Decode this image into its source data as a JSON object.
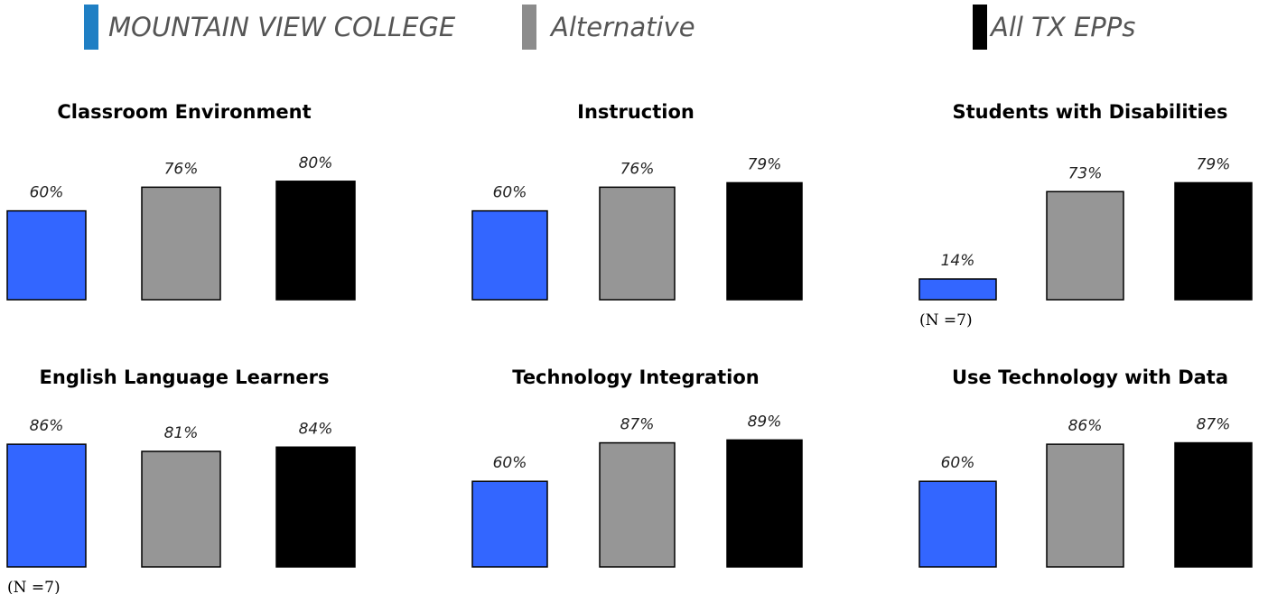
{
  "legend": [
    {
      "label": "MOUNTAIN VIEW COLLEGE",
      "color": "#1f7fc4"
    },
    {
      "label": "Alternative",
      "color": "#8c8c8c"
    },
    {
      "label": "All TX EPPs",
      "color": "#000000"
    }
  ],
  "colors": {
    "bar_program": "#3366ff",
    "bar_alternative": "#969696",
    "bar_all": "#000000"
  },
  "chart_data": [
    {
      "type": "bar",
      "title": "Classroom Environment",
      "categories": [
        "MOUNTAIN VIEW COLLEGE",
        "Alternative",
        "All TX EPPs"
      ],
      "values": [
        60,
        76,
        80
      ],
      "labels": [
        "60%",
        "76%",
        "80%"
      ],
      "note": "",
      "ylim": [
        0,
        100
      ]
    },
    {
      "type": "bar",
      "title": "Instruction",
      "categories": [
        "MOUNTAIN VIEW COLLEGE",
        "Alternative",
        "All TX EPPs"
      ],
      "values": [
        60,
        76,
        79
      ],
      "labels": [
        "60%",
        "76%",
        "79%"
      ],
      "note": "",
      "ylim": [
        0,
        100
      ]
    },
    {
      "type": "bar",
      "title": "Students with Disabilities",
      "categories": [
        "MOUNTAIN VIEW COLLEGE",
        "Alternative",
        "All TX EPPs"
      ],
      "values": [
        14,
        73,
        79
      ],
      "labels": [
        "14%",
        "73%",
        "79%"
      ],
      "note": "(N =7)",
      "ylim": [
        0,
        100
      ]
    },
    {
      "type": "bar",
      "title": "English Language Learners",
      "categories": [
        "MOUNTAIN VIEW COLLEGE",
        "Alternative",
        "All TX EPPs"
      ],
      "values": [
        86,
        81,
        84
      ],
      "labels": [
        "86%",
        "81%",
        "84%"
      ],
      "note": "(N =7)",
      "ylim": [
        0,
        100
      ]
    },
    {
      "type": "bar",
      "title": "Technology Integration",
      "categories": [
        "MOUNTAIN VIEW COLLEGE",
        "Alternative",
        "All TX EPPs"
      ],
      "values": [
        60,
        87,
        89
      ],
      "labels": [
        "60%",
        "87%",
        "89%"
      ],
      "note": "",
      "ylim": [
        0,
        100
      ]
    },
    {
      "type": "bar",
      "title": "Use Technology with Data",
      "categories": [
        "MOUNTAIN VIEW COLLEGE",
        "Alternative",
        "All TX EPPs"
      ],
      "values": [
        60,
        86,
        87
      ],
      "labels": [
        "60%",
        "86%",
        "87%"
      ],
      "note": "",
      "ylim": [
        0,
        100
      ]
    }
  ]
}
